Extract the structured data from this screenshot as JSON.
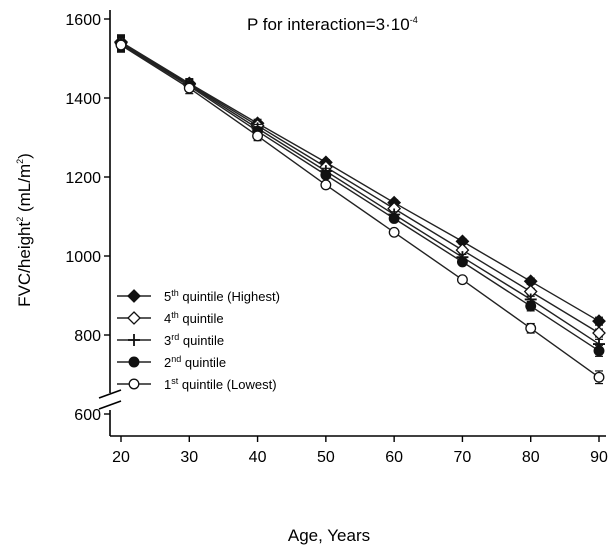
{
  "chart_data": {
    "type": "line",
    "x": [
      20,
      30,
      40,
      50,
      60,
      70,
      80,
      90
    ],
    "xlabel": "Age, Years",
    "ylabel": "FVC/height² (mL/m²)",
    "xlim": [
      18,
      92
    ],
    "ylim": [
      600,
      1610
    ],
    "xticks": [
      20,
      30,
      40,
      50,
      60,
      70,
      80,
      90
    ],
    "yticks": [
      600,
      800,
      1000,
      1200,
      1400,
      1600
    ],
    "axis_break": "y-axis below 600",
    "grid": false,
    "legend_position": "bottom-left",
    "annotation": {
      "prefix": "P for interaction=3·10",
      "exponent": "-4"
    },
    "series": [
      {
        "name": "5th quintile (Highest)",
        "label_parts": {
          "num": "5",
          "sup": "th",
          "rest": " quintile (Highest)"
        },
        "marker": "diamond-filled",
        "values": [
          1542,
          1437,
          1336,
          1237,
          1135,
          1037,
          936,
          835
        ],
        "error": [
          18,
          12,
          10,
          7,
          7,
          7,
          8,
          10
        ]
      },
      {
        "name": "4th quintile",
        "label_parts": {
          "num": "4",
          "sup": "th",
          "rest": " quintile"
        },
        "marker": "diamond-open",
        "values": [
          1540,
          1435,
          1330,
          1225,
          1120,
          1015,
          910,
          805
        ],
        "error": [
          18,
          12,
          10,
          7,
          7,
          7,
          8,
          10
        ]
      },
      {
        "name": "3rd quintile",
        "label_parts": {
          "num": "3",
          "sup": "rd",
          "rest": " quintile"
        },
        "marker": "plus",
        "values": [
          1538,
          1433,
          1323,
          1215,
          1105,
          997,
          890,
          777
        ],
        "error": [
          18,
          12,
          10,
          7,
          7,
          7,
          8,
          12
        ]
      },
      {
        "name": "2nd quintile",
        "label_parts": {
          "num": "2",
          "sup": "nd",
          "rest": " quintile"
        },
        "marker": "circle-filled",
        "values": [
          1536,
          1430,
          1316,
          1205,
          1095,
          985,
          873,
          760
        ],
        "error": [
          18,
          12,
          10,
          7,
          7,
          7,
          12,
          14
        ]
      },
      {
        "name": "1st quintile (Lowest)",
        "label_parts": {
          "num": "1",
          "sup": "st",
          "rest": " quintile (Lowest)"
        },
        "marker": "circle-open",
        "values": [
          1534,
          1425,
          1304,
          1180,
          1060,
          940,
          817,
          693
        ],
        "error": [
          18,
          14,
          12,
          8,
          7,
          7,
          12,
          16
        ]
      }
    ]
  }
}
